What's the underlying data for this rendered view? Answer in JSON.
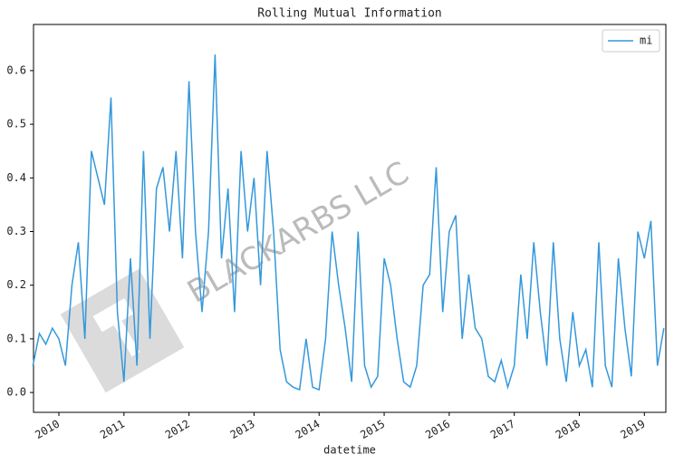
{
  "chart_data": {
    "type": "line",
    "title": "Rolling Mutual Information",
    "x_label": "datetime",
    "annotation": "BLACKARBS LLC",
    "x": [
      2009.6,
      2009.7,
      2009.8,
      2009.9,
      2010.0,
      2010.1,
      2010.2,
      2010.3,
      2010.4,
      2010.5,
      2010.6,
      2010.7,
      2010.8,
      2010.9,
      2011.0,
      2011.1,
      2011.2,
      2011.3,
      2011.4,
      2011.5,
      2011.6,
      2011.7,
      2011.8,
      2011.9,
      2012.0,
      2012.1,
      2012.2,
      2012.3,
      2012.4,
      2012.5,
      2012.6,
      2012.7,
      2012.8,
      2012.9,
      2013.0,
      2013.1,
      2013.2,
      2013.3,
      2013.4,
      2013.5,
      2013.6,
      2013.7,
      2013.8,
      2013.9,
      2014.0,
      2014.1,
      2014.2,
      2014.3,
      2014.4,
      2014.5,
      2014.6,
      2014.7,
      2014.8,
      2014.9,
      2015.0,
      2015.1,
      2015.2,
      2015.3,
      2015.4,
      2015.5,
      2015.6,
      2015.7,
      2015.8,
      2015.9,
      2016.0,
      2016.1,
      2016.2,
      2016.3,
      2016.4,
      2016.5,
      2016.6,
      2016.7,
      2016.8,
      2016.9,
      2017.0,
      2017.1,
      2017.2,
      2017.3,
      2017.4,
      2017.5,
      2017.6,
      2017.7,
      2017.8,
      2017.9,
      2018.0,
      2018.1,
      2018.2,
      2018.3,
      2018.4,
      2018.5,
      2018.6,
      2018.7,
      2018.8,
      2018.9,
      2019.0,
      2019.1,
      2019.2,
      2019.3
    ],
    "series": [
      {
        "name": "mi",
        "color": "#3498db",
        "values": [
          0.05,
          0.11,
          0.09,
          0.12,
          0.1,
          0.05,
          0.2,
          0.28,
          0.1,
          0.45,
          0.4,
          0.35,
          0.55,
          0.15,
          0.02,
          0.25,
          0.05,
          0.45,
          0.1,
          0.38,
          0.42,
          0.3,
          0.45,
          0.25,
          0.58,
          0.3,
          0.15,
          0.3,
          0.63,
          0.25,
          0.38,
          0.15,
          0.45,
          0.3,
          0.4,
          0.2,
          0.45,
          0.3,
          0.08,
          0.02,
          0.01,
          0.005,
          0.1,
          0.01,
          0.005,
          0.1,
          0.3,
          0.2,
          0.12,
          0.02,
          0.3,
          0.05,
          0.01,
          0.03,
          0.25,
          0.2,
          0.1,
          0.02,
          0.01,
          0.05,
          0.2,
          0.22,
          0.42,
          0.15,
          0.3,
          0.33,
          0.1,
          0.22,
          0.12,
          0.1,
          0.03,
          0.02,
          0.06,
          0.01,
          0.05,
          0.22,
          0.1,
          0.28,
          0.15,
          0.05,
          0.28,
          0.1,
          0.02,
          0.15,
          0.05,
          0.08,
          0.01,
          0.28,
          0.05,
          0.01,
          0.25,
          0.12,
          0.03,
          0.3,
          0.25,
          0.32,
          0.05,
          0.12
        ]
      }
    ],
    "xlim": [
      2009.61,
      2019.33
    ],
    "xticks": [
      2010,
      2011,
      2012,
      2013,
      2014,
      2015,
      2016,
      2017,
      2018,
      2019
    ],
    "ylim": [
      -0.037,
      0.686
    ],
    "yticks": [
      {
        "value": 0,
        "label": "0.0"
      },
      0.1,
      0.2,
      0.3,
      0.4,
      0.5,
      0.6
    ],
    "legend": "upper right",
    "grid": false
  }
}
